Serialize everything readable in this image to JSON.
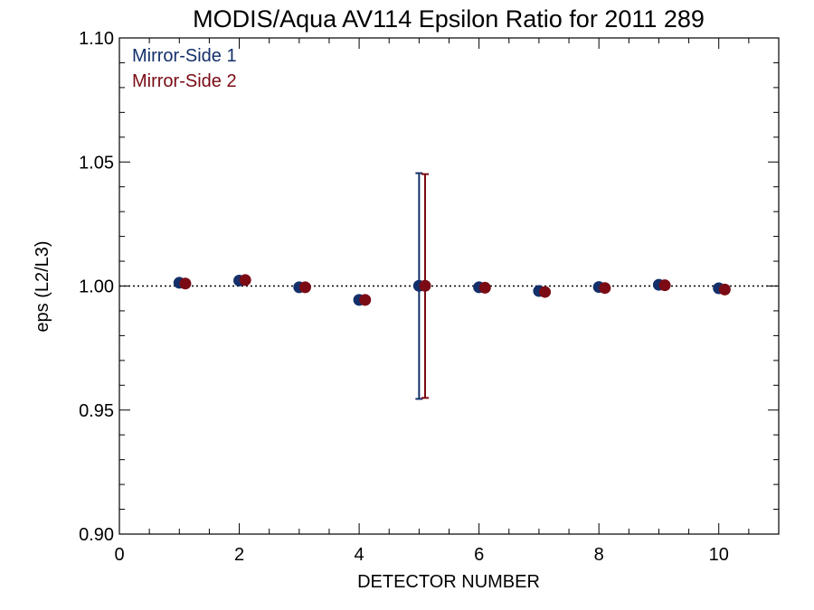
{
  "chart_data": {
    "type": "scatter",
    "title": "MODIS/Aqua AV114 Epsilon Ratio for 2011 289",
    "xlabel": "DETECTOR NUMBER",
    "ylabel": "eps (L2/L3)",
    "xlim": [
      0,
      11
    ],
    "ylim": [
      0.9,
      1.1
    ],
    "x_ticks": [
      0,
      2,
      4,
      6,
      8,
      10
    ],
    "x_tick_labels": [
      "0",
      "2",
      "4",
      "6",
      "8",
      "10"
    ],
    "y_ticks": [
      0.9,
      0.95,
      1.0,
      1.05,
      1.1
    ],
    "y_tick_labels": [
      "0.90",
      "0.95",
      "1.00",
      "1.05",
      "1.10"
    ],
    "reference_line": 1.0,
    "grid": false,
    "legend_position": "top-left",
    "series": [
      {
        "name": "Mirror-Side 1",
        "color": "#13306a",
        "x": [
          1,
          2,
          3,
          4,
          5,
          6,
          7,
          8,
          9,
          10
        ],
        "y": [
          1.0013,
          1.0022,
          0.9995,
          0.9944,
          1.0001,
          0.9995,
          0.998,
          0.9996,
          1.0005,
          0.9991
        ],
        "error_bars": [
          {
            "x": 5,
            "low": 0.9545,
            "high": 1.0455
          }
        ]
      },
      {
        "name": "Mirror-Side 2",
        "color": "#7a0b14",
        "x": [
          1,
          2,
          3,
          4,
          5,
          6,
          7,
          8,
          9,
          10
        ],
        "y": [
          1.001,
          1.0024,
          0.9995,
          0.9944,
          1.0001,
          0.9993,
          0.9976,
          0.9992,
          1.0003,
          0.9986
        ],
        "error_bars": [
          {
            "x": 5,
            "low": 0.9549,
            "high": 1.0451
          }
        ]
      }
    ]
  }
}
